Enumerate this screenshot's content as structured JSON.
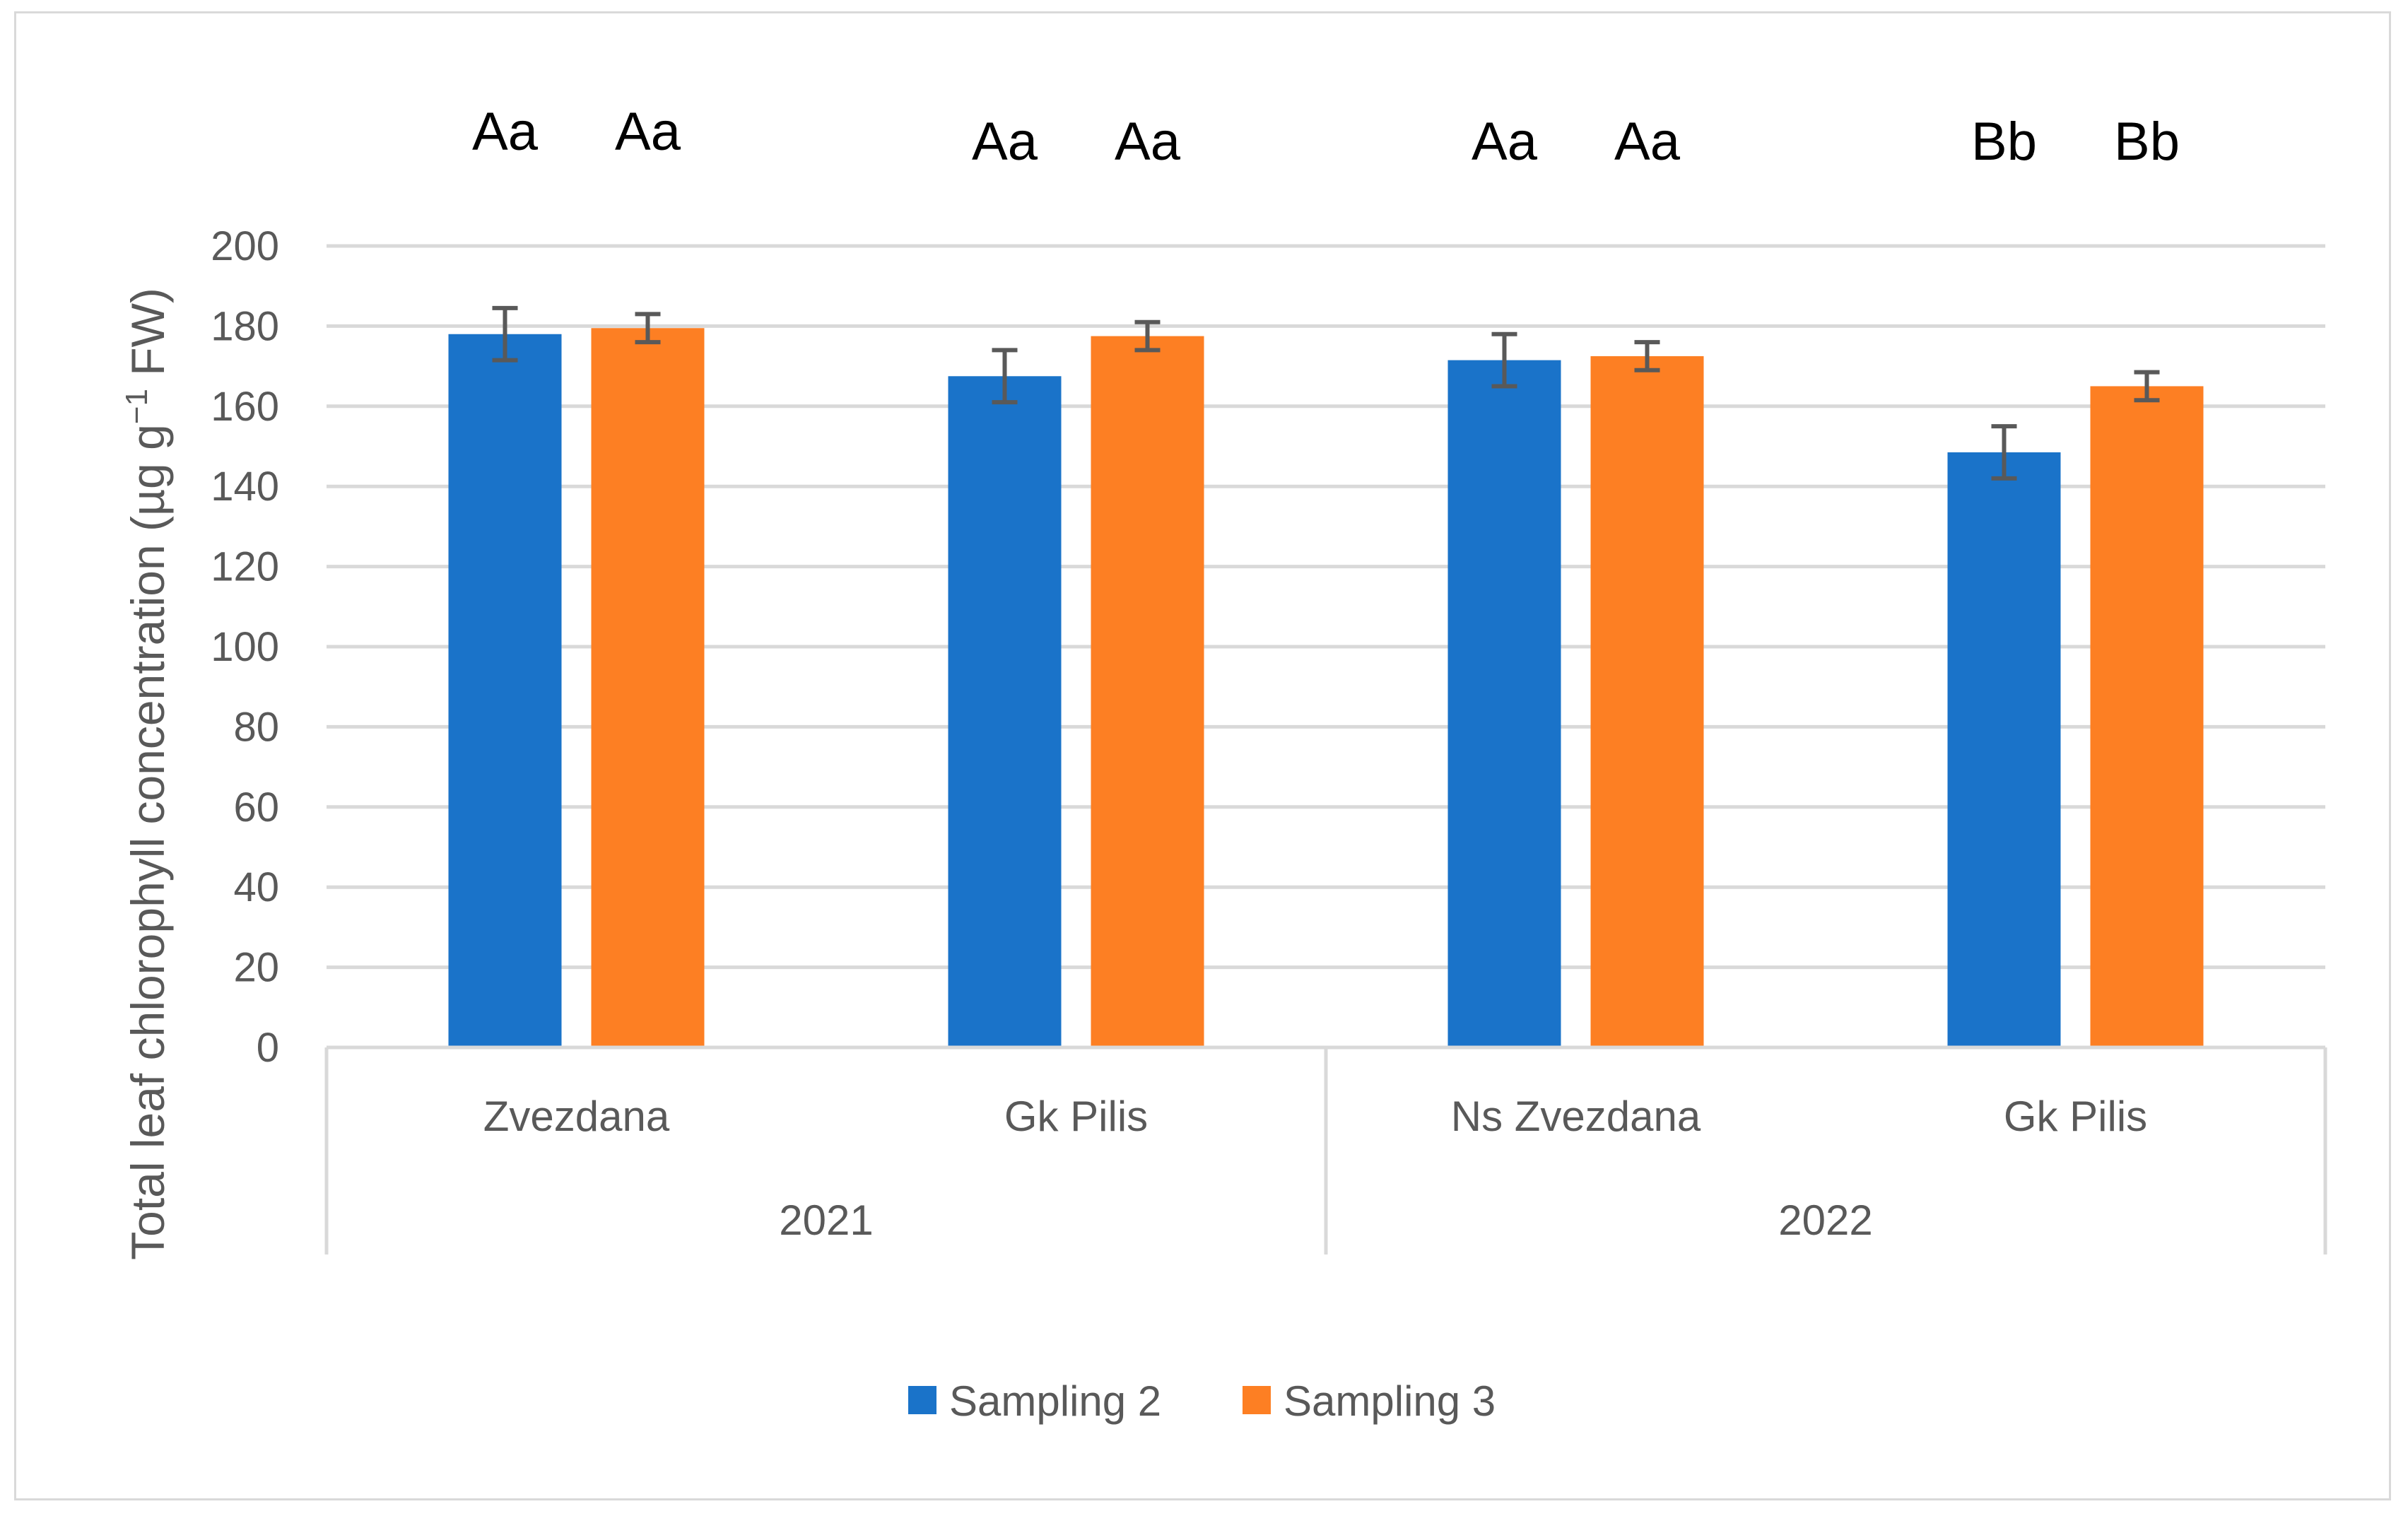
{
  "chart_data": {
    "type": "bar",
    "title": "",
    "ylabel": "Total leaf chlorophyll concentration (µg g",
    "ylabel_sup": "−1",
    "ylabel_tail": " FW)",
    "ylim": [
      0,
      200
    ],
    "yticks": [
      "0",
      "20",
      "40",
      "60",
      "80",
      "100",
      "120",
      "140",
      "160",
      "180",
      "200"
    ],
    "groups": [
      {
        "year": "2021",
        "categories": [
          "Zvezdana",
          "Gk Pilis"
        ]
      },
      {
        "year": "2022",
        "categories": [
          "Ns Zvezdana",
          "Gk Pilis"
        ]
      }
    ],
    "categories": [
      "Zvezdana",
      "Gk Pilis",
      "Ns Zvezdana",
      "Gk Pilis"
    ],
    "series": [
      {
        "name": "Sampling 2",
        "color": "#1a73c9",
        "values": [
          178,
          167.5,
          171.5,
          148.5
        ],
        "errors": [
          6.5,
          6.5,
          6.5,
          6.5
        ],
        "letters": [
          "Aa",
          "Aa",
          "Aa",
          "Bb"
        ]
      },
      {
        "name": "Sampling 3",
        "color": "#fd7f23",
        "values": [
          179.5,
          177.5,
          172.5,
          165
        ],
        "errors": [
          3.5,
          3.5,
          3.5,
          3.5
        ],
        "letters": [
          "Aa",
          "Aa",
          "Aa",
          "Bb"
        ]
      }
    ],
    "legend_position": "bottom",
    "grid": true
  }
}
